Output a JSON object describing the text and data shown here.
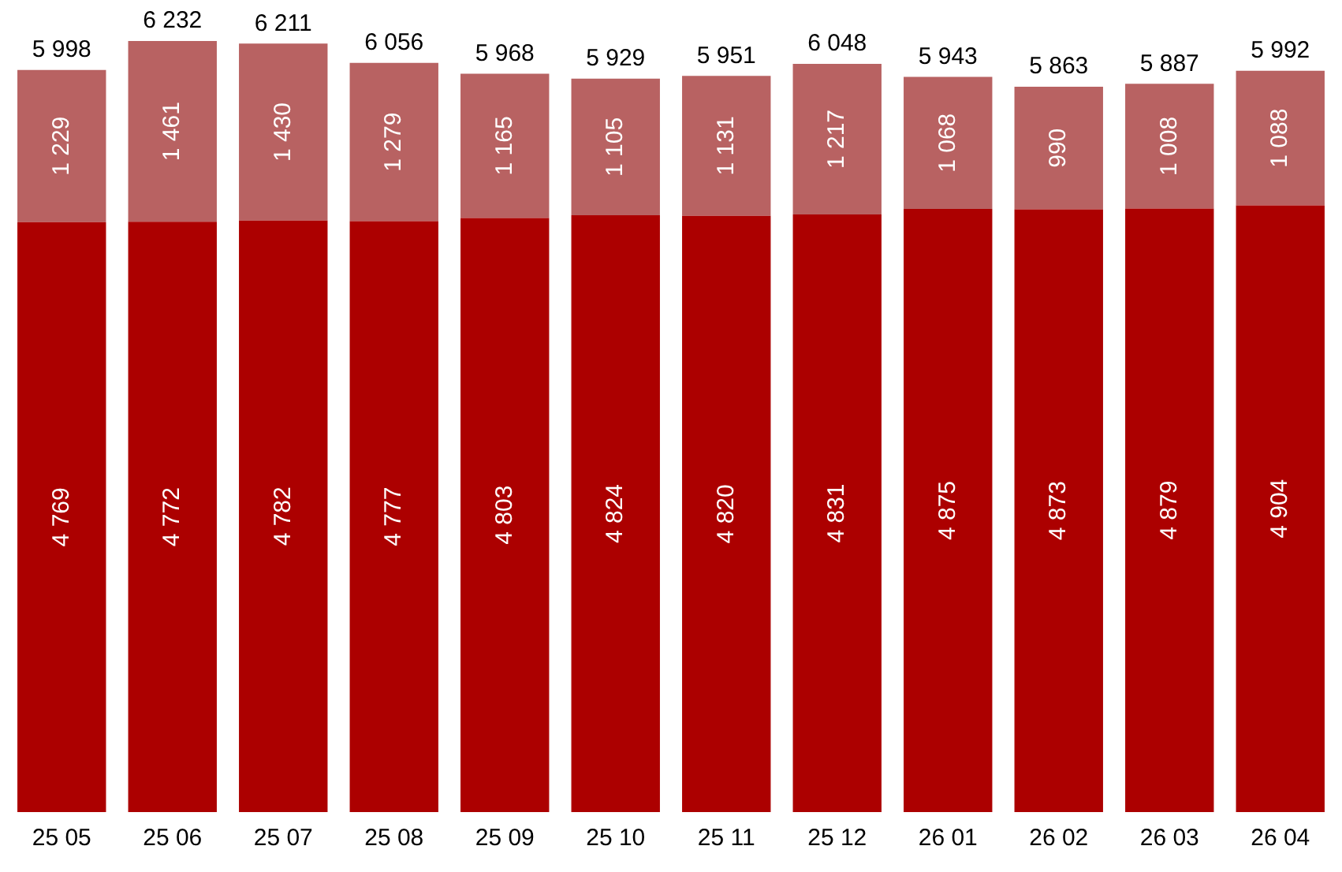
{
  "chart_data": {
    "type": "bar",
    "stacked": true,
    "categories": [
      "25 05",
      "25 06",
      "25 07",
      "25 08",
      "25 09",
      "25 10",
      "25 11",
      "25 12",
      "26 01",
      "26 02",
      "26 03",
      "26 04"
    ],
    "series": [
      {
        "color": "#ac0000",
        "values": [
          4769,
          4772,
          4782,
          4777,
          4803,
          4824,
          4820,
          4831,
          4875,
          4873,
          4879,
          4904
        ],
        "value_labels": [
          "4 769",
          "4 772",
          "4 782",
          "4 777",
          "4 803",
          "4 824",
          "4 820",
          "4 831",
          "4 875",
          "4 873",
          "4 879",
          "4 904"
        ]
      },
      {
        "color": "#b86262",
        "values": [
          1229,
          1461,
          1430,
          1279,
          1165,
          1105,
          1131,
          1217,
          1068,
          990,
          1008,
          1088
        ],
        "value_labels": [
          "1 229",
          "1 461",
          "1 430",
          "1 279",
          "1 165",
          "1 105",
          "1 131",
          "1 217",
          "1 068",
          "990",
          "1 008",
          "1 088"
        ]
      }
    ],
    "totals": [
      "5 998",
      "6 232",
      "6 211",
      "6 056",
      "5 968",
      "5 929",
      "5 951",
      "6 048",
      "5 943",
      "5 863",
      "5 887",
      "5 992"
    ],
    "tick_labels": "x",
    "grid": false,
    "legend": false
  }
}
